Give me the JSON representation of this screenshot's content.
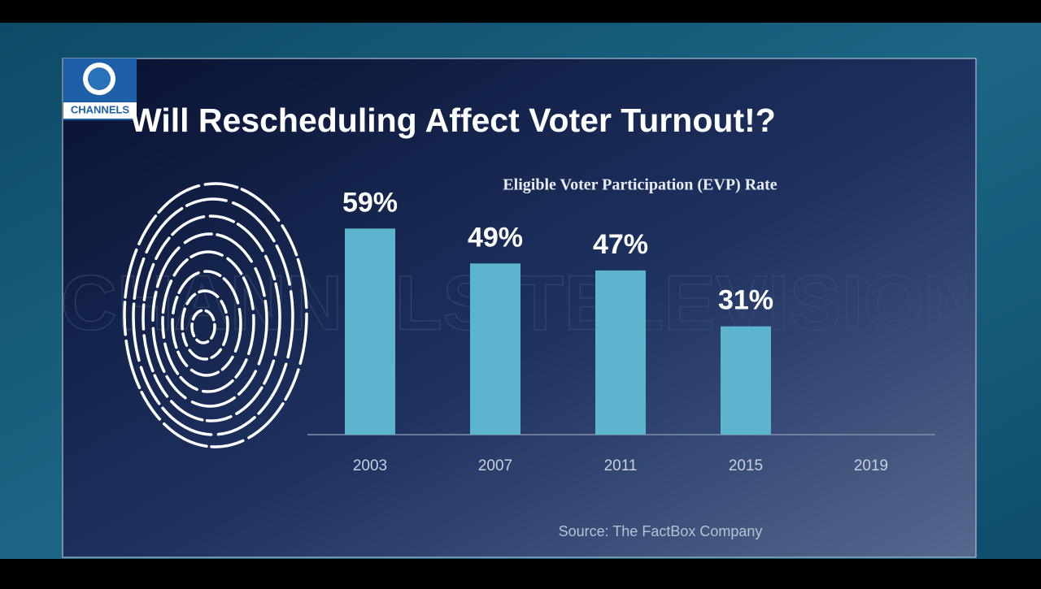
{
  "logo": "CHANNELS",
  "watermark": "CHANNELS TELEVISION",
  "chart_data": {
    "type": "bar",
    "title": "Will Rescheduling Affect Voter Turnout!?",
    "subtitle": "Eligible Voter Participation (EVP) Rate",
    "categories": [
      "2003",
      "2007",
      "2011",
      "2015",
      "2019"
    ],
    "values": [
      59,
      49,
      47,
      31,
      null
    ],
    "value_labels": [
      "59%",
      "49%",
      "47%",
      "31%",
      null
    ],
    "color": "#5cb4cf",
    "ylim": [
      0,
      60
    ],
    "source": "Source: The FactBox Company"
  }
}
